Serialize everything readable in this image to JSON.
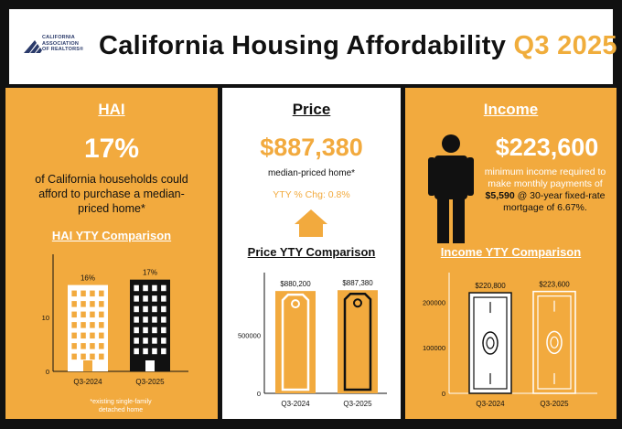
{
  "header": {
    "logo_text": [
      "CALIFORNIA",
      "ASSOCIATION",
      "OF REALTORS®"
    ],
    "title": "California Housing Affordability",
    "period": "Q3 2025"
  },
  "hai": {
    "title": "HAI",
    "value": "17%",
    "description": "of California households could afford to purchase a median-priced home*",
    "chart_title": "HAI YTY Comparison",
    "footnote": "*existing single-family detached home"
  },
  "price": {
    "title": "Price",
    "value": "$887,380",
    "description": "median-priced home*",
    "yty": "YTY % Chg: 0.8%",
    "chart_title": "Price YTY Comparison"
  },
  "income": {
    "title": "Income",
    "value": "$223,600",
    "description_pre": "minimum income required to make monthly payments of ",
    "payment": "$5,590",
    "description_post": " @ 30-year fixed-rate mortgage of 6.67%.",
    "chart_title": "Income YTY Comparison"
  },
  "colors": {
    "accent": "#f2aa3e",
    "dark": "#111111",
    "light": "#ffffff"
  },
  "icons": {
    "house": "house-icon",
    "person": "person-icon",
    "building": "building-icon",
    "price_tag": "price-tag-icon",
    "banknote": "banknote-icon"
  },
  "chart_data": [
    {
      "type": "bar",
      "title": "HAI YTY Comparison",
      "categories": [
        "Q3-2024",
        "Q3-2025"
      ],
      "values": [
        16,
        17
      ],
      "value_labels": [
        "16%",
        "17%"
      ],
      "yticks": [
        0,
        10
      ],
      "ylim": [
        0,
        20
      ]
    },
    {
      "type": "bar",
      "title": "Price YTY Comparison",
      "categories": [
        "Q3-2024",
        "Q3-2025"
      ],
      "values": [
        880200,
        887380
      ],
      "value_labels": [
        "$880,200",
        "$887,380"
      ],
      "yticks": [
        0,
        500000
      ],
      "ylim": [
        0,
        960000
      ]
    },
    {
      "type": "bar",
      "title": "Income YTY Comparison",
      "categories": [
        "Q3-2024",
        "Q3-2025"
      ],
      "values": [
        220800,
        223600
      ],
      "value_labels": [
        "$220,800",
        "$223,600"
      ],
      "yticks": [
        0,
        100000,
        200000
      ],
      "ylim": [
        0,
        245000
      ]
    }
  ]
}
